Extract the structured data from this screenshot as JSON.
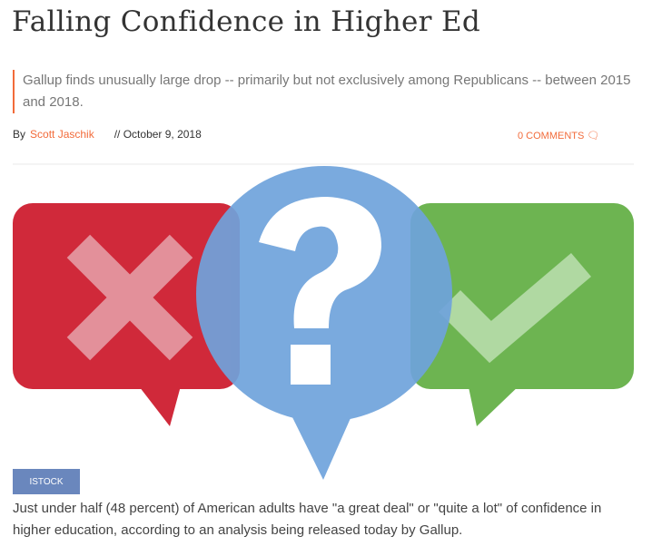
{
  "article": {
    "title": "Falling Confidence in Higher Ed",
    "subtitle": "Gallup finds unusually large drop -- primarily but not exclusively among Republicans -- between 2015 and 2018.",
    "by_label": "By",
    "author": "Scott Jaschik",
    "date": "// October 9, 2018",
    "comments": "0 COMMENTS",
    "image_credit": "ISTOCK",
    "body": "Just under half (48 percent) of American adults have \"a great deal\" or \"quite a lot\" of confidence in higher education, according to an analysis being released today by Gallup."
  },
  "colors": {
    "accent": "#f26b3a",
    "red": "#d0293a",
    "green": "#6db451",
    "blue": "#6fa3dc",
    "credit": "#6a87bd"
  }
}
